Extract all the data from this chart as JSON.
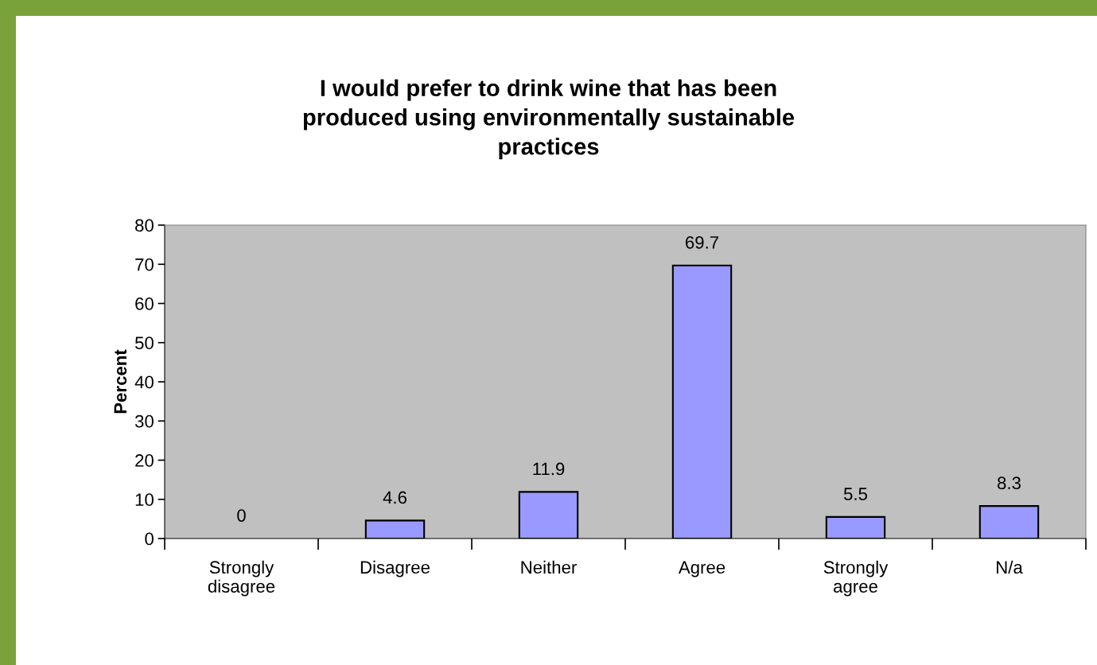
{
  "chart_data": {
    "type": "bar",
    "title": "I would prefer to drink wine that has been\nproduced using environmentally sustainable\npractices",
    "ylabel": "Percent",
    "categories": [
      "Strongly\ndisagree",
      "Disagree",
      "Neither",
      "Agree",
      "Strongly\nagree",
      "N/a"
    ],
    "values": [
      0,
      4.6,
      11.9,
      69.7,
      5.5,
      8.3
    ],
    "color": "#9999ff",
    "ylim": [
      0,
      80
    ],
    "yticks": [
      0,
      10,
      20,
      30,
      40,
      50,
      60,
      70,
      80
    ],
    "data_labels": true,
    "grid": false
  }
}
